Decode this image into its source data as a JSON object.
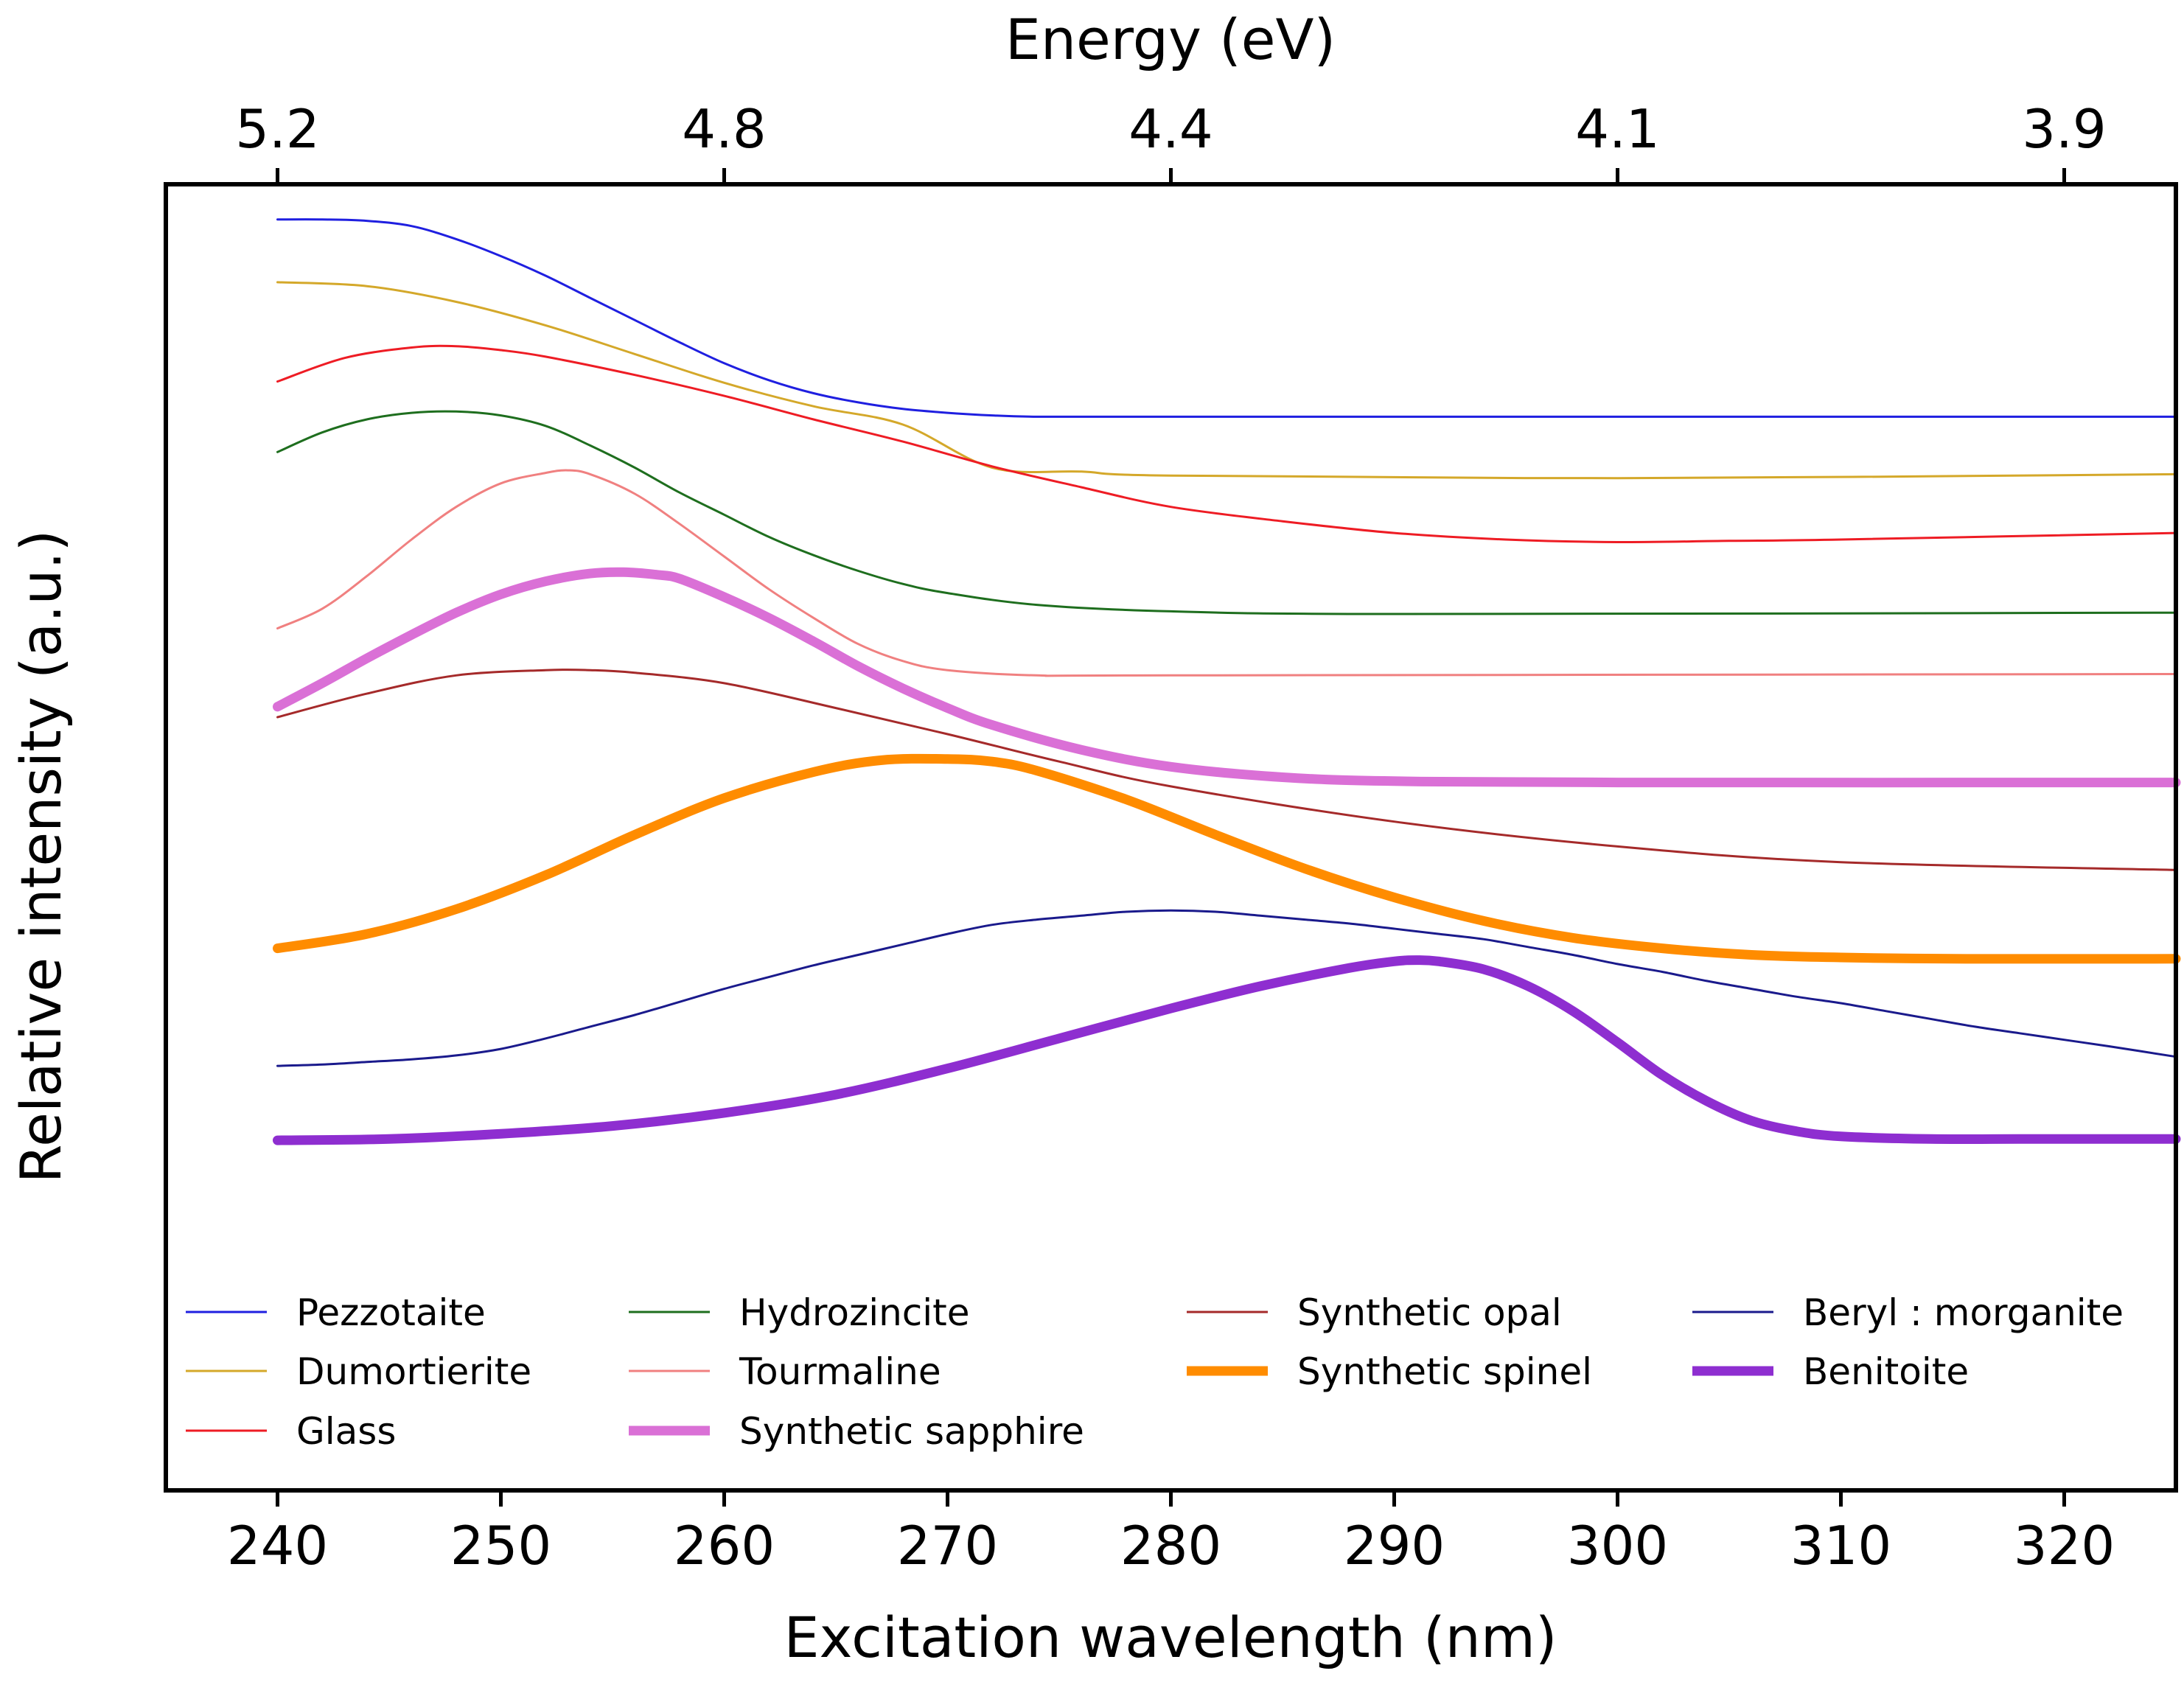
{
  "chart_data": {
    "type": "line",
    "xlabel": "Excitation wavelength (nm)",
    "ylabel": "Relative intensity (a.u.)",
    "top_xlabel": "Energy (eV)",
    "xlim": [
      235,
      325
    ],
    "ylim": [
      0,
      100
    ],
    "x_ticks": [
      240,
      250,
      260,
      270,
      280,
      290,
      300,
      310,
      320
    ],
    "x_tick_labels": [
      "240",
      "250",
      "260",
      "270",
      "280",
      "290",
      "300",
      "310",
      "320"
    ],
    "top_ticks": [
      240,
      260,
      280,
      300,
      320
    ],
    "top_tick_labels": [
      "5.2",
      "4.8",
      "4.4",
      "4.1",
      "3.9"
    ],
    "y_ticks_shown": false,
    "grid": false,
    "legend_position": "bottom",
    "legend_columns": 4,
    "series": [
      {
        "name": "Pezzotaite",
        "color": "#1f1fe0",
        "width": 3,
        "x": [
          240,
          242,
          244,
          246,
          248,
          250,
          252,
          254,
          256,
          258,
          260,
          262,
          264,
          266,
          268,
          270,
          272,
          274,
          278,
          285,
          300,
          325
        ],
        "y": [
          97.3,
          97.3,
          97.2,
          96.8,
          95.8,
          94.5,
          93.0,
          91.3,
          89.6,
          87.9,
          86.3,
          85.0,
          84.0,
          83.3,
          82.8,
          82.5,
          82.3,
          82.2,
          82.2,
          82.2,
          82.2,
          82.2
        ]
      },
      {
        "name": "Dumortierite",
        "color": "#d4a82a",
        "width": 3,
        "x": [
          240,
          244,
          248,
          252,
          256,
          260,
          264,
          268,
          272,
          276,
          280,
          300,
          325
        ],
        "y": [
          92.5,
          92.2,
          91.0,
          89.2,
          87.0,
          84.8,
          83.0,
          81.6,
          78.3,
          78.0,
          77.7,
          77.5,
          77.8
        ]
      },
      {
        "name": "Glass",
        "color": "#ee1c24",
        "width": 3,
        "x": [
          240,
          243,
          246,
          248,
          250,
          252,
          256,
          260,
          264,
          268,
          272,
          276,
          280,
          285,
          290,
          295,
          300,
          305,
          310,
          325
        ],
        "y": [
          84.9,
          86.7,
          87.5,
          87.6,
          87.3,
          86.8,
          85.4,
          83.8,
          82.0,
          80.3,
          78.4,
          76.8,
          75.3,
          74.2,
          73.3,
          72.8,
          72.6,
          72.7,
          72.8,
          73.3
        ]
      },
      {
        "name": "Hydrozincite",
        "color": "#1e6e1e",
        "width": 3,
        "x": [
          240,
          242,
          244,
          246,
          248,
          250,
          252,
          254,
          256,
          258,
          260,
          262,
          264,
          266,
          268,
          270,
          274,
          280,
          290,
          325
        ],
        "y": [
          79.5,
          81.0,
          82.0,
          82.5,
          82.6,
          82.3,
          81.5,
          80.0,
          78.3,
          76.4,
          74.7,
          73.0,
          71.6,
          70.4,
          69.4,
          68.7,
          67.8,
          67.3,
          67.1,
          67.2
        ]
      },
      {
        "name": "Tourmaline",
        "color": "#f08080",
        "width": 3,
        "x": [
          240,
          242,
          244,
          246,
          248,
          250,
          252,
          253,
          254,
          256,
          258,
          260,
          262,
          264,
          266,
          268,
          270,
          274,
          280,
          325
        ],
        "y": [
          66.0,
          67.5,
          70.0,
          72.8,
          75.3,
          77.1,
          77.9,
          78.1,
          77.8,
          76.3,
          74.0,
          71.5,
          69.0,
          66.8,
          64.8,
          63.5,
          62.8,
          62.4,
          62.4,
          62.5
        ]
      },
      {
        "name": "Synthetic sapphire",
        "color": "#da70d6",
        "width": 13,
        "x": [
          240,
          242,
          244,
          246,
          248,
          250,
          252,
          254,
          255.5,
          257,
          258,
          260,
          262,
          264,
          266,
          268,
          270,
          272,
          276,
          280,
          285,
          290,
          300,
          325
        ],
        "y": [
          60.0,
          61.8,
          63.7,
          65.5,
          67.2,
          68.6,
          69.6,
          70.2,
          70.3,
          70.1,
          69.8,
          68.4,
          66.8,
          65.0,
          63.1,
          61.4,
          59.9,
          58.6,
          56.7,
          55.4,
          54.6,
          54.3,
          54.2,
          54.2
        ]
      },
      {
        "name": "Synthetic opal",
        "color": "#a52a2a",
        "width": 3,
        "x": [
          240,
          244,
          248,
          252,
          254,
          256,
          260,
          265,
          270,
          275,
          280,
          290,
          300,
          310,
          325
        ],
        "y": [
          59.2,
          61.0,
          62.4,
          62.8,
          62.8,
          62.6,
          61.8,
          59.9,
          57.9,
          55.8,
          53.9,
          51.2,
          49.3,
          48.1,
          47.5
        ]
      },
      {
        "name": "Synthetic spinel",
        "color": "#ff8c00",
        "width": 13,
        "x": [
          240,
          244,
          248,
          252,
          256,
          260,
          264,
          267,
          270,
          272,
          274,
          278,
          282,
          286,
          290,
          294,
          298,
          302,
          306,
          310,
          315,
          325
        ],
        "y": [
          41.5,
          42.6,
          44.5,
          47.1,
          50.2,
          53.0,
          55.0,
          55.9,
          56.0,
          55.8,
          55.1,
          52.9,
          50.2,
          47.6,
          45.4,
          43.6,
          42.3,
          41.5,
          41.0,
          40.8,
          40.7,
          40.7
        ]
      },
      {
        "name": "Beryl : morganite",
        "color": "#1a1a8c",
        "width": 3,
        "x": [
          240,
          242,
          244,
          246,
          248,
          250,
          252,
          254,
          256,
          258,
          260,
          262,
          264,
          266,
          268,
          270,
          272,
          274,
          276,
          278,
          280,
          282,
          284,
          286,
          288,
          290,
          292,
          294,
          296,
          298,
          300,
          302,
          304,
          306,
          308,
          310,
          312,
          314,
          316,
          318,
          320,
          322,
          325
        ],
        "y": [
          32.5,
          32.6,
          32.8,
          33.0,
          33.3,
          33.8,
          34.6,
          35.5,
          36.4,
          37.4,
          38.4,
          39.3,
          40.2,
          41.0,
          41.8,
          42.6,
          43.3,
          43.7,
          44.0,
          44.3,
          44.4,
          44.3,
          44.0,
          43.7,
          43.4,
          43.0,
          42.6,
          42.2,
          41.6,
          41.0,
          40.3,
          39.7,
          39.0,
          38.4,
          37.8,
          37.3,
          36.7,
          36.1,
          35.5,
          35.0,
          34.5,
          34.0,
          33.2
        ]
      },
      {
        "name": "Benitoite",
        "color": "#8e2ed0",
        "width": 13,
        "x": [
          240,
          245,
          250,
          255,
          260,
          265,
          270,
          275,
          280,
          284,
          288,
          290,
          291,
          292,
          294,
          296,
          298,
          300,
          302,
          304,
          306,
          308,
          310,
          314,
          318,
          325
        ],
        "y": [
          26.8,
          26.9,
          27.3,
          27.9,
          28.9,
          30.3,
          32.3,
          34.6,
          36.9,
          38.6,
          40.0,
          40.5,
          40.6,
          40.5,
          39.9,
          38.6,
          36.7,
          34.3,
          31.8,
          29.8,
          28.3,
          27.5,
          27.1,
          26.9,
          26.9,
          26.9
        ]
      }
    ]
  }
}
